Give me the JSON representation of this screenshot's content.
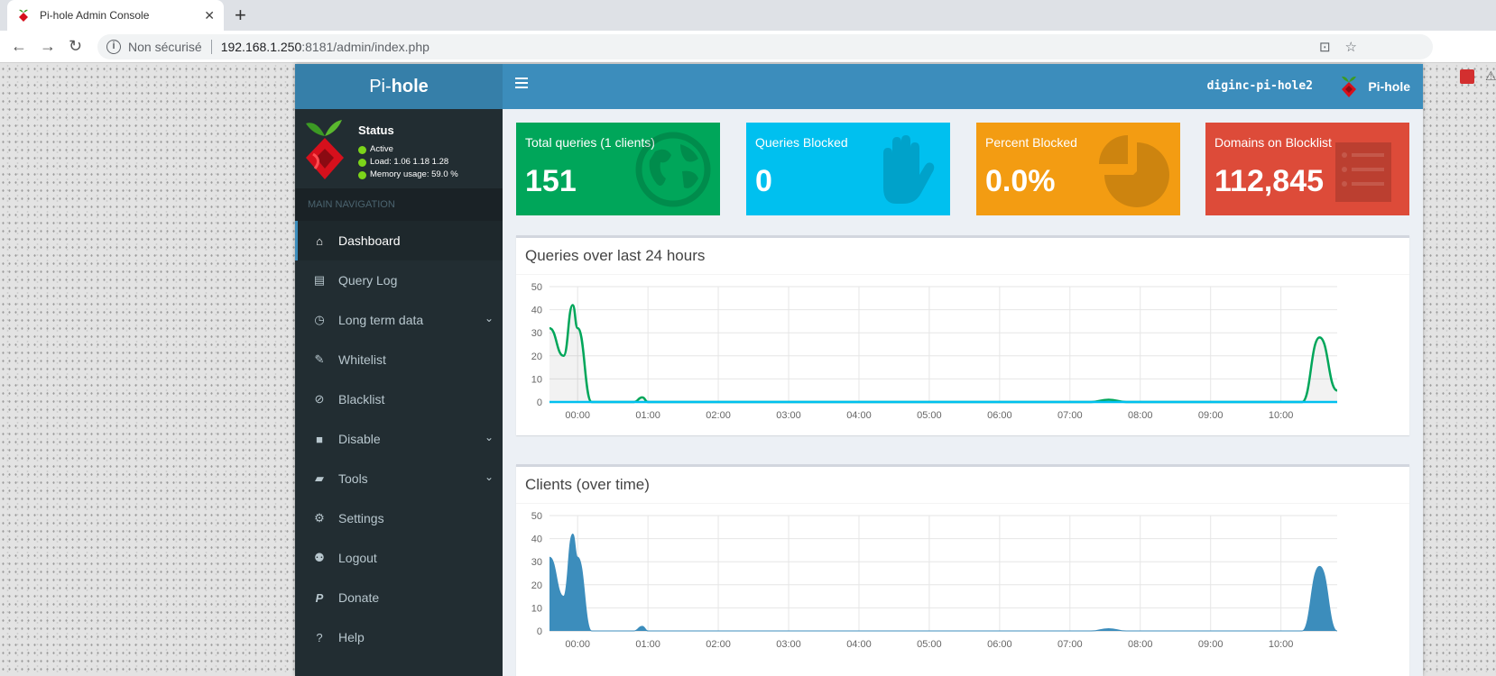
{
  "browser": {
    "tab_title": "Pi-hole Admin Console",
    "security_label": "Non sécurisé",
    "url_host": "192.168.1.250",
    "url_path": ":8181/admin/index.php"
  },
  "app": {
    "logo_prefix": "Pi-",
    "logo_suffix": "hole",
    "hostname": "diginc-pi-hole2",
    "user_label": "Pi-hole"
  },
  "status": {
    "title": "Status",
    "state": "Active",
    "load": "Load:  1.06  1.18  1.28",
    "memory": "Memory usage:  59.0 %"
  },
  "sidebar": {
    "header": "MAIN NAVIGATION",
    "items": [
      {
        "label": "Dashboard",
        "icon": "home-icon"
      },
      {
        "label": "Query Log",
        "icon": "file-icon"
      },
      {
        "label": "Long term data",
        "icon": "clock-icon"
      },
      {
        "label": "Whitelist",
        "icon": "edit-icon"
      },
      {
        "label": "Blacklist",
        "icon": "ban-icon"
      },
      {
        "label": "Disable",
        "icon": "stop-icon"
      },
      {
        "label": "Tools",
        "icon": "folder-icon"
      },
      {
        "label": "Settings",
        "icon": "gears-icon"
      },
      {
        "label": "Logout",
        "icon": "user-times-icon"
      },
      {
        "label": "Donate",
        "icon": "paypal-icon"
      },
      {
        "label": "Help",
        "icon": "question-icon"
      }
    ]
  },
  "stats": [
    {
      "label": "Total queries (1 clients)",
      "value": "151",
      "icon": "globe-icon",
      "color": "#00a65a"
    },
    {
      "label": "Queries Blocked",
      "value": "0",
      "icon": "hand-icon",
      "color": "#00c0ef"
    },
    {
      "label": "Percent Blocked",
      "value": "0.0%",
      "icon": "pie-chart-icon",
      "color": "#f39c12"
    },
    {
      "label": "Domains on Blocklist",
      "value": "112,845",
      "icon": "list-icon",
      "color": "#dd4b39"
    }
  ],
  "chart_data": [
    {
      "type": "area",
      "title": "Queries over last 24 hours",
      "x_ticks": [
        "00:00",
        "01:00",
        "02:00",
        "03:00",
        "04:00",
        "05:00",
        "06:00",
        "07:00",
        "08:00",
        "09:00",
        "10:00"
      ],
      "ylim": [
        0,
        50
      ],
      "y_ticks": [
        0,
        10,
        20,
        30,
        40,
        50
      ],
      "grid": true,
      "series": [
        {
          "color": "#00a65a",
          "x": [
            -0.4,
            -0.2,
            -0.07,
            0.0,
            0.2,
            0.5,
            0.8,
            0.92,
            1.0,
            1.2,
            5.0,
            7.3,
            7.55,
            7.8,
            9.0,
            10.3,
            10.55,
            10.8
          ],
          "values": [
            32,
            20,
            42,
            32,
            0,
            0,
            0,
            2,
            0,
            0,
            0,
            0,
            1,
            0,
            0,
            0,
            28,
            5
          ]
        },
        {
          "color": "#00c0ef",
          "x": [
            -0.4,
            10.8
          ],
          "values": [
            0,
            0
          ]
        }
      ]
    },
    {
      "type": "area",
      "title": "Clients (over time)",
      "x_ticks": [
        "00:00",
        "01:00",
        "02:00",
        "03:00",
        "04:00",
        "05:00",
        "06:00",
        "07:00",
        "08:00",
        "09:00",
        "10:00"
      ],
      "ylim": [
        0,
        50
      ],
      "y_ticks": [
        0,
        10,
        20,
        30,
        40,
        50
      ],
      "grid": true,
      "series": [
        {
          "color": "#3c8dbc",
          "x": [
            -0.4,
            -0.2,
            -0.07,
            0.0,
            0.2,
            0.5,
            0.8,
            0.92,
            1.0,
            1.2,
            5.0,
            7.3,
            7.55,
            7.8,
            9.0,
            10.3,
            10.55,
            10.8
          ],
          "values": [
            32,
            15,
            42,
            32,
            0,
            0,
            0,
            2,
            0,
            0,
            0,
            0,
            1,
            0,
            0,
            0,
            28,
            0
          ]
        }
      ]
    }
  ]
}
